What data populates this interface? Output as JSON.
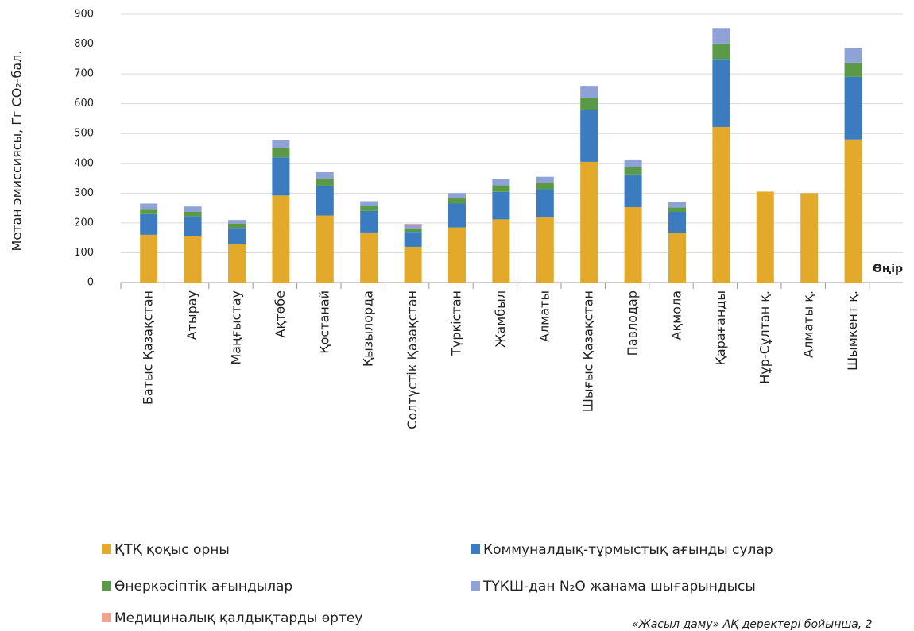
{
  "chart_data": {
    "type": "stacked_bar",
    "y_label": "Метан эмиссиясы, Гг CO₂-бал.",
    "x_label": "Өңір",
    "source": "«Жасыл даму» АҚ деректері бойынша, 2",
    "categories": [
      "Батыс Қазақстан",
      "Атырау",
      "Маңғыстау",
      "Ақтөбе",
      "Қостанай",
      "Қызылорда",
      "Солтүстік Қазақстан",
      "Түркістан",
      "Жамбыл",
      "Алматы",
      "Шығыс Қазақстан",
      "Павлодар",
      "Ақмола",
      "Қарағанды",
      "Нұр-Сұлтан қ.",
      "Алматы қ.",
      "Шымкент қ."
    ],
    "series": [
      {
        "name": "ҚТҚ қоқыс орны",
        "color": "#e3a92a",
        "values": [
          160,
          157,
          128,
          292,
          225,
          168,
          120,
          185,
          212,
          218,
          405,
          253,
          167,
          522,
          305,
          300,
          480
        ]
      },
      {
        "name": "Коммуналдық-тұрмыстық ағынды сулар",
        "color": "#3a7cbf",
        "values": [
          72,
          65,
          55,
          128,
          100,
          72,
          50,
          80,
          92,
          95,
          175,
          110,
          70,
          228,
          0,
          0,
          210
        ]
      },
      {
        "name": "Өнеркәсіптік ағындылар",
        "color": "#5a9a47",
        "values": [
          15,
          15,
          15,
          30,
          22,
          18,
          12,
          18,
          22,
          20,
          38,
          25,
          15,
          52,
          0,
          0,
          48
        ]
      },
      {
        "name": "ТҮКШ-дан N₂O жанама шығарындысы",
        "color": "#8ea2d8",
        "values": [
          18,
          18,
          12,
          28,
          23,
          15,
          10,
          17,
          22,
          22,
          42,
          25,
          18,
          52,
          0,
          0,
          48
        ]
      },
      {
        "name": "Медициналық қалдықтарды өртеу",
        "color": "#f0a58c",
        "values": [
          0,
          0,
          0,
          0,
          0,
          0,
          5,
          0,
          0,
          0,
          0,
          0,
          0,
          0,
          0,
          0,
          0
        ]
      }
    ],
    "ylim": [
      0,
      900
    ],
    "yticks": [
      0,
      100,
      200,
      300,
      400,
      500,
      600,
      700,
      800,
      900
    ],
    "grid": true
  }
}
